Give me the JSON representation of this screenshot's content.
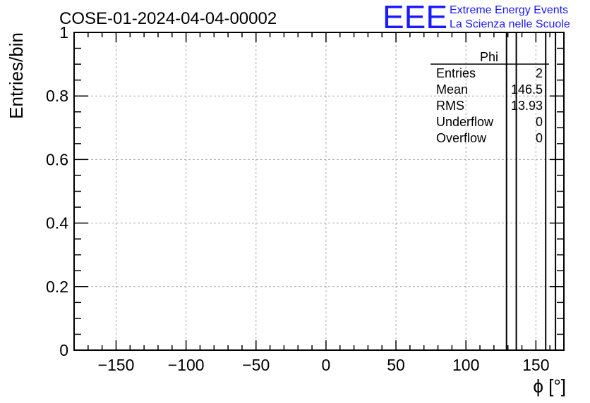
{
  "chart_data": {
    "type": "bar",
    "title": "COSE-01-2024-04-04-00002",
    "xlabel": "ϕ [°]",
    "ylabel": "Entries/bin",
    "xlim": [
      -180,
      170
    ],
    "ylim": [
      0,
      1.0
    ],
    "grid": true,
    "x_ticks": [
      -150,
      -100,
      -50,
      0,
      50,
      100,
      150
    ],
    "x_tick_labels": [
      "−150",
      "−100",
      "−50",
      "0",
      "50",
      "100",
      "150"
    ],
    "y_ticks": [
      0,
      0.2,
      0.4,
      0.6,
      0.8,
      1
    ],
    "y_tick_labels": [
      "0",
      "0.2",
      "0.4",
      "0.6",
      "0.8",
      "1"
    ],
    "bins": [
      {
        "x_low": 129,
        "x_high": 136,
        "count": 1
      },
      {
        "x_low": 157,
        "x_high": 164,
        "count": 1
      }
    ],
    "stats_box": {
      "name": "Phi",
      "rows": [
        {
          "label": "Entries",
          "value": "2"
        },
        {
          "label": "Mean",
          "value": "146.5"
        },
        {
          "label": "RMS",
          "value": "13.93"
        },
        {
          "label": "Underflow",
          "value": "0"
        },
        {
          "label": "Overflow",
          "value": "0"
        }
      ]
    }
  },
  "branding": {
    "logo_text": "EEE",
    "line1": "Extreme Energy Events",
    "line2": "La Scienza nelle Scuole",
    "color": "#1a1aff"
  }
}
